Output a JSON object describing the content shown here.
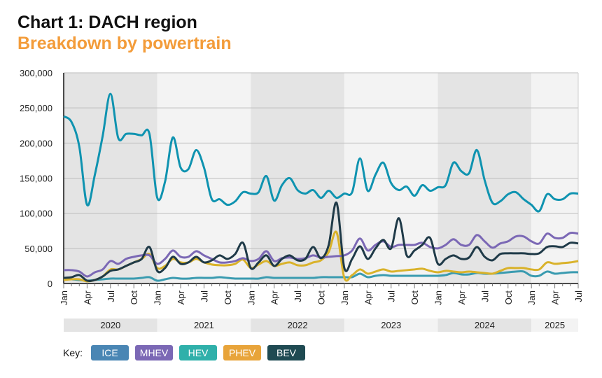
{
  "title": "Chart 1: DACH region",
  "subtitle": "Breakdown by powertrain",
  "key_label": "Key:",
  "chart_data": {
    "type": "line",
    "x_start": "2020-01",
    "x_end": "2025-07",
    "ylim": [
      0,
      300000
    ],
    "yticks": [
      "0",
      "50,000",
      "100,000",
      "150,000",
      "200,000",
      "250,000",
      "300,000"
    ],
    "month_ticks": [
      "Jan",
      "Apr",
      "Jul",
      "Oct"
    ],
    "years": [
      "2020",
      "2021",
      "2022",
      "2023",
      "2024",
      "2025"
    ],
    "grid": true,
    "legend": "bottom",
    "series": [
      {
        "name": "ICE",
        "color": "#0f93b0",
        "key_color": "#4a86b4",
        "values": [
          238,
          230,
          195,
          112,
          155,
          210,
          270,
          207,
          213,
          213,
          211,
          213,
          122,
          145,
          208,
          165,
          163,
          190,
          165,
          120,
          120,
          112,
          117,
          130,
          128,
          130,
          153,
          118,
          140,
          150,
          133,
          128,
          133,
          122,
          132,
          122,
          128,
          130,
          178,
          132,
          155,
          172,
          143,
          133,
          138,
          125,
          140,
          132,
          137,
          140,
          172,
          160,
          157,
          190,
          147,
          115,
          117,
          127,
          130,
          120,
          112,
          103,
          127,
          120,
          120,
          128,
          128
        ]
      },
      {
        "name": "MHEV",
        "color": "#7b68b5",
        "key_color": "#7b68b5",
        "values": [
          19,
          19,
          17,
          10,
          16,
          20,
          32,
          28,
          35,
          38,
          40,
          40,
          28,
          35,
          47,
          38,
          38,
          46,
          40,
          35,
          30,
          30,
          32,
          36,
          32,
          35,
          46,
          32,
          36,
          37,
          35,
          36,
          40,
          37,
          38,
          39,
          40,
          47,
          64,
          47,
          55,
          60,
          52,
          55,
          55,
          55,
          58,
          52,
          50,
          55,
          63,
          55,
          55,
          69,
          60,
          51,
          57,
          60,
          67,
          67,
          60,
          57,
          71,
          65,
          65,
          72,
          71
        ]
      },
      {
        "name": "HEV",
        "color": "#3a9bb0",
        "key_color": "#2fb0aa",
        "values": [
          6,
          6,
          5,
          4,
          5,
          6,
          7,
          7,
          7,
          7,
          8,
          9,
          4,
          6,
          8,
          7,
          7,
          8,
          8,
          8,
          9,
          8,
          7,
          7,
          7,
          7,
          9,
          8,
          8,
          8,
          8,
          8,
          8,
          9,
          9,
          9,
          9,
          9,
          14,
          9,
          11,
          12,
          11,
          11,
          11,
          11,
          11,
          11,
          11,
          12,
          15,
          13,
          13,
          15,
          14,
          14,
          15,
          16,
          17,
          17,
          11,
          11,
          17,
          14,
          15,
          16,
          16
        ]
      },
      {
        "name": "PHEV",
        "color": "#d9b22a",
        "key_color": "#e8a43a",
        "values": [
          5,
          6,
          6,
          3,
          5,
          10,
          20,
          20,
          25,
          30,
          35,
          42,
          22,
          25,
          35,
          30,
          30,
          35,
          30,
          27,
          26,
          26,
          28,
          34,
          22,
          27,
          32,
          25,
          28,
          30,
          26,
          26,
          30,
          33,
          45,
          73,
          8,
          12,
          20,
          14,
          17,
          20,
          17,
          18,
          19,
          20,
          21,
          18,
          16,
          18,
          17,
          16,
          17,
          16,
          15,
          14,
          18,
          22,
          22,
          22,
          20,
          20,
          30,
          28,
          29,
          30,
          32
        ]
      },
      {
        "name": "BEV",
        "color": "#1f3a48",
        "key_color": "#1f4a52",
        "values": [
          8,
          9,
          12,
          4,
          5,
          10,
          18,
          20,
          25,
          30,
          35,
          52,
          18,
          22,
          38,
          28,
          30,
          38,
          30,
          33,
          40,
          35,
          42,
          58,
          22,
          30,
          40,
          25,
          35,
          40,
          33,
          35,
          52,
          36,
          55,
          115,
          22,
          35,
          53,
          35,
          50,
          62,
          50,
          93,
          40,
          47,
          55,
          65,
          28,
          35,
          40,
          35,
          37,
          52,
          38,
          33,
          42,
          43,
          43,
          43,
          42,
          43,
          52,
          53,
          52,
          58,
          57
        ]
      }
    ],
    "value_unit_multiplier": 1000
  }
}
